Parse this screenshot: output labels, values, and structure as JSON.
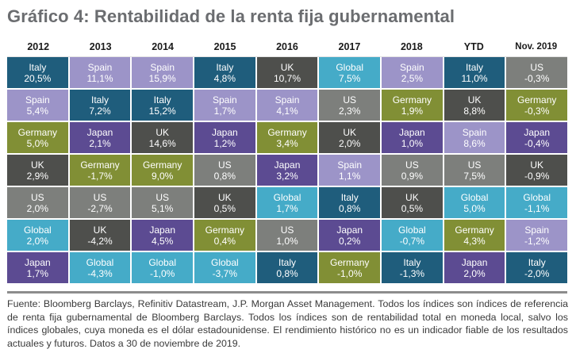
{
  "title": "Gráfico 4: Rentabilidad de la renta fija gubernamental",
  "colors": {
    "Italy": "#1f5d7c",
    "Spain": "#9c94c8",
    "Germany": "#818f35",
    "UK": "#4e4f4c",
    "US": "#7d7f7c",
    "Japan": "#5c4b92",
    "Global": "#45abc8"
  },
  "chart_data": {
    "type": "table",
    "title": "Gráfico 4: Rentabilidad de la renta fija gubernamental",
    "columns": [
      "2012",
      "2013",
      "2014",
      "2015",
      "2016",
      "2017",
      "2018",
      "YTD",
      "Nov. 2019"
    ],
    "rows": [
      [
        {
          "name": "Italy",
          "value": "20,5%"
        },
        {
          "name": "Spain",
          "value": "11,1%"
        },
        {
          "name": "Spain",
          "value": "15,9%"
        },
        {
          "name": "Italy",
          "value": "4,8%"
        },
        {
          "name": "UK",
          "value": "10,7%"
        },
        {
          "name": "Global",
          "value": "7,5%"
        },
        {
          "name": "Spain",
          "value": "2,5%"
        },
        {
          "name": "Italy",
          "value": "11,0%"
        },
        {
          "name": "US",
          "value": "-0,3%"
        }
      ],
      [
        {
          "name": "Spain",
          "value": "5,4%"
        },
        {
          "name": "Italy",
          "value": "7,2%"
        },
        {
          "name": "Italy",
          "value": "15,2%"
        },
        {
          "name": "Spain",
          "value": "1,7%"
        },
        {
          "name": "Spain",
          "value": "4,1%"
        },
        {
          "name": "US",
          "value": "2,3%"
        },
        {
          "name": "Germany",
          "value": "1,9%"
        },
        {
          "name": "UK",
          "value": "8,8%"
        },
        {
          "name": "Germany",
          "value": "-0,3%"
        }
      ],
      [
        {
          "name": "Germany",
          "value": "5,0%"
        },
        {
          "name": "Japan",
          "value": "2,1%"
        },
        {
          "name": "UK",
          "value": "14,6%"
        },
        {
          "name": "Japan",
          "value": "1,2%"
        },
        {
          "name": "Germany",
          "value": "3,4%"
        },
        {
          "name": "UK",
          "value": "2,0%"
        },
        {
          "name": "Japan",
          "value": "1,0%"
        },
        {
          "name": "Spain",
          "value": "8,6%"
        },
        {
          "name": "Japan",
          "value": "-0,4%"
        }
      ],
      [
        {
          "name": "UK",
          "value": "2,9%"
        },
        {
          "name": "Germany",
          "value": "-1,7%"
        },
        {
          "name": "Germany",
          "value": "9,0%"
        },
        {
          "name": "US",
          "value": "0,8%"
        },
        {
          "name": "Japan",
          "value": "3,2%"
        },
        {
          "name": "Spain",
          "value": "1,1%"
        },
        {
          "name": "US",
          "value": "0,9%"
        },
        {
          "name": "US",
          "value": "7,5%"
        },
        {
          "name": "UK",
          "value": "-0,9%"
        }
      ],
      [
        {
          "name": "US",
          "value": "2,0%"
        },
        {
          "name": "US",
          "value": "-2,7%"
        },
        {
          "name": "US",
          "value": "5,1%"
        },
        {
          "name": "UK",
          "value": "0,5%"
        },
        {
          "name": "Global",
          "value": "1,7%"
        },
        {
          "name": "Italy",
          "value": "0,8%"
        },
        {
          "name": "UK",
          "value": "0,5%"
        },
        {
          "name": "Global",
          "value": "5,0%"
        },
        {
          "name": "Global",
          "value": "-1,1%"
        }
      ],
      [
        {
          "name": "Global",
          "value": "2,0%"
        },
        {
          "name": "UK",
          "value": "-4,2%"
        },
        {
          "name": "Japan",
          "value": "4,5%"
        },
        {
          "name": "Germany",
          "value": "0,4%"
        },
        {
          "name": "US",
          "value": "1,0%"
        },
        {
          "name": "Japan",
          "value": "0,2%"
        },
        {
          "name": "Global",
          "value": "-0,7%"
        },
        {
          "name": "Germany",
          "value": "4,3%"
        },
        {
          "name": "Spain",
          "value": "-1,2%"
        }
      ],
      [
        {
          "name": "Japan",
          "value": "1,7%"
        },
        {
          "name": "Global",
          "value": "-4,3%"
        },
        {
          "name": "Global",
          "value": "-1,0%"
        },
        {
          "name": "Global",
          "value": "-3,7%"
        },
        {
          "name": "Italy",
          "value": "0,8%"
        },
        {
          "name": "Germany",
          "value": "-1,0%"
        },
        {
          "name": "Italy",
          "value": "-1,3%"
        },
        {
          "name": "Japan",
          "value": "2,0%"
        },
        {
          "name": "Italy",
          "value": "-2,0%"
        }
      ]
    ]
  },
  "footnote": "Fuente:  Bloomberg Barclays, Refinitiv Datastream, J.P. Morgan Asset Management.  Todos los índices son índices de referencia de renta fija gubernamental de Bloomberg Barclays. Todos los índices son de rentabilidad total en moneda local, salvo los índices globales, cuya moneda es el dólar estadounidense. El rendimiento histórico no es un indicador fiable de los resultados actuales y futuros. Datos a 30 de noviembre de 2019."
}
